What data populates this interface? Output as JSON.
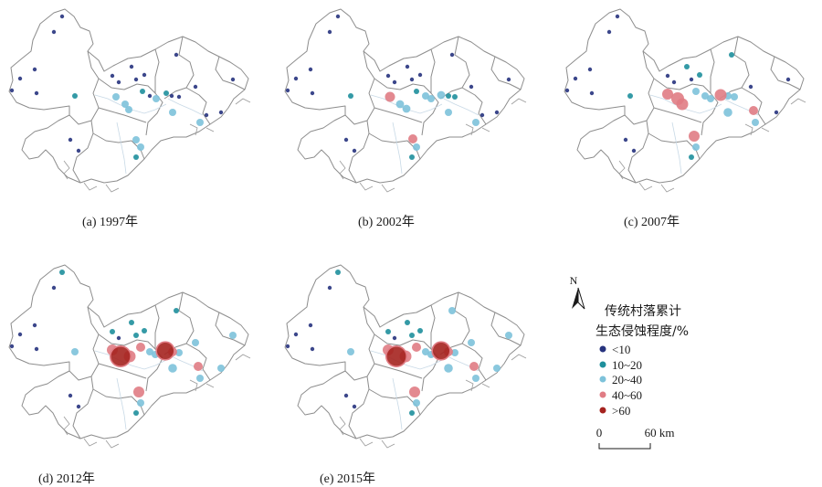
{
  "colors": {
    "lt10": "#27337e",
    "10to20": "#1e8f9c",
    "20to40": "#7dc2da",
    "40to60": "#e07c84",
    "gt60": "#a5231f",
    "boundary": "#8d8d8d"
  },
  "legend": {
    "title_line1": "传统村落累计",
    "title_line2": "生态侵蚀程度/%",
    "classes": [
      {
        "label": "<10",
        "color_key": "lt10"
      },
      {
        "label": "10~20",
        "color_key": "10to20"
      },
      {
        "label": "20~40",
        "color_key": "20to40"
      },
      {
        "label": "40~60",
        "color_key": "40to60"
      },
      {
        "label": ">60",
        "color_key": "gt60"
      }
    ]
  },
  "north_arrow": {
    "label": "N",
    "icon": "north-arrow-icon"
  },
  "scale_bar": {
    "label_start": "0",
    "label_end": "60 km"
  },
  "panels": [
    {
      "id": "a",
      "caption": "(a) 1997年",
      "villages": [
        {
          "mx": 64,
          "my": 14,
          "c": "lt10"
        },
        {
          "mx": 55,
          "my": 31,
          "c": "lt10"
        },
        {
          "mx": 34,
          "my": 72,
          "c": "lt10"
        },
        {
          "mx": 18,
          "my": 82,
          "c": "lt10"
        },
        {
          "mx": 9,
          "my": 95,
          "c": "lt10"
        },
        {
          "mx": 78,
          "my": 101,
          "c": "10to20"
        },
        {
          "mx": 123,
          "my": 102,
          "c": "20to40"
        },
        {
          "mx": 133,
          "my": 110,
          "c": "20to40"
        },
        {
          "mx": 137,
          "my": 116,
          "c": "20to40"
        },
        {
          "mx": 126,
          "my": 86,
          "c": "lt10"
        },
        {
          "mx": 119,
          "my": 79,
          "c": "lt10"
        },
        {
          "mx": 140,
          "my": 69,
          "c": "lt10"
        },
        {
          "mx": 154,
          "my": 78,
          "c": "lt10"
        },
        {
          "mx": 145,
          "my": 83,
          "c": "lt10"
        },
        {
          "mx": 152,
          "my": 96,
          "c": "10to20"
        },
        {
          "mx": 160,
          "my": 101,
          "c": "lt10"
        },
        {
          "mx": 167,
          "my": 104,
          "c": "20to40"
        },
        {
          "mx": 178,
          "my": 98,
          "c": "10to20"
        },
        {
          "mx": 184,
          "my": 101,
          "c": "lt10"
        },
        {
          "mx": 192,
          "my": 102,
          "c": "lt10"
        },
        {
          "mx": 189,
          "my": 56,
          "c": "lt10"
        },
        {
          "mx": 210,
          "my": 91,
          "c": "lt10"
        },
        {
          "mx": 185,
          "my": 119,
          "c": "20to40"
        },
        {
          "mx": 222,
          "my": 122,
          "c": "lt10"
        },
        {
          "mx": 215,
          "my": 130,
          "c": "20to40"
        },
        {
          "mx": 238,
          "my": 119,
          "c": "lt10"
        },
        {
          "mx": 251,
          "my": 83,
          "c": "lt10"
        },
        {
          "mx": 145,
          "my": 149,
          "c": "20to40"
        },
        {
          "mx": 150,
          "my": 157,
          "c": "20to40"
        },
        {
          "mx": 145,
          "my": 168,
          "c": "10to20"
        },
        {
          "mx": 73,
          "my": 149,
          "c": "lt10"
        },
        {
          "mx": 82,
          "my": 161,
          "c": "lt10"
        },
        {
          "mx": 36,
          "my": 98,
          "c": "lt10"
        }
      ]
    },
    {
      "id": "b",
      "caption": "(b) 2002年",
      "villages": [
        {
          "mx": 64,
          "my": 14,
          "c": "lt10"
        },
        {
          "mx": 55,
          "my": 31,
          "c": "lt10"
        },
        {
          "mx": 34,
          "my": 72,
          "c": "lt10"
        },
        {
          "mx": 18,
          "my": 82,
          "c": "lt10"
        },
        {
          "mx": 9,
          "my": 95,
          "c": "lt10"
        },
        {
          "mx": 78,
          "my": 101,
          "c": "10to20"
        },
        {
          "mx": 121,
          "my": 102,
          "c": "40to60",
          "s": 1.1
        },
        {
          "mx": 132,
          "my": 110,
          "c": "20to40",
          "s": 1.1
        },
        {
          "mx": 139,
          "my": 115,
          "c": "20to40",
          "s": 1.1
        },
        {
          "mx": 126,
          "my": 86,
          "c": "lt10"
        },
        {
          "mx": 119,
          "my": 79,
          "c": "lt10"
        },
        {
          "mx": 140,
          "my": 69,
          "c": "lt10"
        },
        {
          "mx": 154,
          "my": 78,
          "c": "lt10"
        },
        {
          "mx": 145,
          "my": 83,
          "c": "lt10"
        },
        {
          "mx": 150,
          "my": 96,
          "c": "10to20"
        },
        {
          "mx": 160,
          "my": 101,
          "c": "20to40"
        },
        {
          "mx": 166,
          "my": 104,
          "c": "20to40"
        },
        {
          "mx": 177,
          "my": 100,
          "c": "20to40",
          "s": 1.1
        },
        {
          "mx": 185,
          "my": 101,
          "c": "10to20"
        },
        {
          "mx": 192,
          "my": 102,
          "c": "10to20"
        },
        {
          "mx": 189,
          "my": 56,
          "c": "lt10"
        },
        {
          "mx": 210,
          "my": 91,
          "c": "lt10"
        },
        {
          "mx": 185,
          "my": 119,
          "c": "20to40"
        },
        {
          "mx": 222,
          "my": 122,
          "c": "lt10"
        },
        {
          "mx": 215,
          "my": 130,
          "c": "20to40"
        },
        {
          "mx": 238,
          "my": 119,
          "c": "lt10"
        },
        {
          "mx": 251,
          "my": 83,
          "c": "lt10"
        },
        {
          "mx": 146,
          "my": 148,
          "c": "40to60"
        },
        {
          "mx": 150,
          "my": 157,
          "c": "20to40"
        },
        {
          "mx": 145,
          "my": 168,
          "c": "10to20"
        },
        {
          "mx": 73,
          "my": 149,
          "c": "lt10"
        },
        {
          "mx": 82,
          "my": 161,
          "c": "lt10"
        },
        {
          "mx": 36,
          "my": 98,
          "c": "lt10"
        }
      ]
    },
    {
      "id": "c",
      "caption": "(c) 2007年",
      "villages": [
        {
          "mx": 64,
          "my": 14,
          "c": "lt10"
        },
        {
          "mx": 55,
          "my": 31,
          "c": "lt10"
        },
        {
          "mx": 34,
          "my": 72,
          "c": "lt10"
        },
        {
          "mx": 18,
          "my": 82,
          "c": "lt10"
        },
        {
          "mx": 9,
          "my": 95,
          "c": "lt10"
        },
        {
          "mx": 78,
          "my": 101,
          "c": "10to20"
        },
        {
          "mx": 119,
          "my": 99,
          "c": "40to60",
          "s": 1.2
        },
        {
          "mx": 130,
          "my": 104,
          "c": "40to60",
          "s": 1.4
        },
        {
          "mx": 135,
          "my": 110,
          "c": "40to60",
          "s": 1.3
        },
        {
          "mx": 126,
          "my": 86,
          "c": "lt10"
        },
        {
          "mx": 119,
          "my": 79,
          "c": "lt10"
        },
        {
          "mx": 140,
          "my": 69,
          "c": "10to20"
        },
        {
          "mx": 154,
          "my": 78,
          "c": "10to20"
        },
        {
          "mx": 145,
          "my": 83,
          "c": "lt10"
        },
        {
          "mx": 150,
          "my": 96,
          "c": "20to40"
        },
        {
          "mx": 160,
          "my": 101,
          "c": "20to40"
        },
        {
          "mx": 166,
          "my": 104,
          "c": "20to40"
        },
        {
          "mx": 177,
          "my": 100,
          "c": "40to60",
          "s": 1.3
        },
        {
          "mx": 185,
          "my": 101,
          "c": "20to40"
        },
        {
          "mx": 192,
          "my": 102,
          "c": "20to40"
        },
        {
          "mx": 189,
          "my": 56,
          "c": "10to20"
        },
        {
          "mx": 210,
          "my": 91,
          "c": "lt10"
        },
        {
          "mx": 185,
          "my": 119,
          "c": "20to40",
          "s": 1.2
        },
        {
          "mx": 213,
          "my": 117,
          "c": "40to60"
        },
        {
          "mx": 215,
          "my": 130,
          "c": "20to40"
        },
        {
          "mx": 238,
          "my": 119,
          "c": "lt10"
        },
        {
          "mx": 251,
          "my": 83,
          "c": "lt10"
        },
        {
          "mx": 148,
          "my": 145,
          "c": "40to60",
          "s": 1.2
        },
        {
          "mx": 150,
          "my": 157,
          "c": "20to40"
        },
        {
          "mx": 145,
          "my": 168,
          "c": "10to20"
        },
        {
          "mx": 73,
          "my": 149,
          "c": "lt10"
        },
        {
          "mx": 82,
          "my": 161,
          "c": "lt10"
        },
        {
          "mx": 36,
          "my": 98,
          "c": "lt10"
        }
      ]
    },
    {
      "id": "d",
      "caption": "(d) 2012年",
      "villages": [
        {
          "mx": 64,
          "my": 14,
          "c": "10to20"
        },
        {
          "mx": 55,
          "my": 31,
          "c": "lt10"
        },
        {
          "mx": 34,
          "my": 72,
          "c": "lt10"
        },
        {
          "mx": 18,
          "my": 82,
          "c": "lt10"
        },
        {
          "mx": 9,
          "my": 95,
          "c": "lt10"
        },
        {
          "mx": 78,
          "my": 101,
          "c": "20to40"
        },
        {
          "mx": 119,
          "my": 99,
          "c": "40to60",
          "s": 1.2
        },
        {
          "mx": 128,
          "my": 106,
          "c": "gt60",
          "s": 1.6
        },
        {
          "mx": 138,
          "my": 106,
          "c": "40to60",
          "s": 1.3
        },
        {
          "mx": 126,
          "my": 86,
          "c": "lt10"
        },
        {
          "mx": 119,
          "my": 79,
          "c": "10to20"
        },
        {
          "mx": 140,
          "my": 69,
          "c": "10to20"
        },
        {
          "mx": 154,
          "my": 78,
          "c": "10to20"
        },
        {
          "mx": 145,
          "my": 83,
          "c": "10to20"
        },
        {
          "mx": 150,
          "my": 96,
          "c": "40to60"
        },
        {
          "mx": 160,
          "my": 101,
          "c": "20to40"
        },
        {
          "mx": 166,
          "my": 104,
          "c": "20to40"
        },
        {
          "mx": 177,
          "my": 100,
          "c": "gt60",
          "s": 1.4
        },
        {
          "mx": 185,
          "my": 101,
          "c": "40to60"
        },
        {
          "mx": 192,
          "my": 102,
          "c": "20to40"
        },
        {
          "mx": 189,
          "my": 56,
          "c": "10to20"
        },
        {
          "mx": 210,
          "my": 91,
          "c": "20to40"
        },
        {
          "mx": 185,
          "my": 119,
          "c": "20to40",
          "s": 1.2
        },
        {
          "mx": 213,
          "my": 117,
          "c": "40to60"
        },
        {
          "mx": 215,
          "my": 130,
          "c": "20to40"
        },
        {
          "mx": 238,
          "my": 119,
          "c": "20to40"
        },
        {
          "mx": 251,
          "my": 83,
          "c": "20to40"
        },
        {
          "mx": 148,
          "my": 145,
          "c": "40to60",
          "s": 1.2
        },
        {
          "mx": 150,
          "my": 157,
          "c": "20to40"
        },
        {
          "mx": 145,
          "my": 168,
          "c": "10to20"
        },
        {
          "mx": 73,
          "my": 149,
          "c": "lt10"
        },
        {
          "mx": 82,
          "my": 161,
          "c": "lt10"
        },
        {
          "mx": 36,
          "my": 98,
          "c": "lt10"
        }
      ]
    },
    {
      "id": "e",
      "caption": "(e) 2015年",
      "villages": [
        {
          "mx": 64,
          "my": 14,
          "c": "10to20"
        },
        {
          "mx": 55,
          "my": 31,
          "c": "lt10"
        },
        {
          "mx": 34,
          "my": 72,
          "c": "lt10"
        },
        {
          "mx": 18,
          "my": 82,
          "c": "lt10"
        },
        {
          "mx": 9,
          "my": 95,
          "c": "lt10"
        },
        {
          "mx": 78,
          "my": 101,
          "c": "20to40"
        },
        {
          "mx": 119,
          "my": 99,
          "c": "40to60",
          "s": 1.2
        },
        {
          "mx": 128,
          "my": 106,
          "c": "gt60",
          "s": 1.6
        },
        {
          "mx": 138,
          "my": 106,
          "c": "40to60",
          "s": 1.3
        },
        {
          "mx": 126,
          "my": 86,
          "c": "lt10"
        },
        {
          "mx": 119,
          "my": 79,
          "c": "10to20"
        },
        {
          "mx": 140,
          "my": 69,
          "c": "10to20"
        },
        {
          "mx": 154,
          "my": 78,
          "c": "10to20"
        },
        {
          "mx": 145,
          "my": 83,
          "c": "10to20"
        },
        {
          "mx": 150,
          "my": 96,
          "c": "40to60"
        },
        {
          "mx": 160,
          "my": 101,
          "c": "20to40"
        },
        {
          "mx": 166,
          "my": 104,
          "c": "20to40"
        },
        {
          "mx": 177,
          "my": 100,
          "c": "gt60",
          "s": 1.4
        },
        {
          "mx": 185,
          "my": 101,
          "c": "40to60"
        },
        {
          "mx": 192,
          "my": 102,
          "c": "20to40"
        },
        {
          "mx": 189,
          "my": 56,
          "c": "20to40"
        },
        {
          "mx": 210,
          "my": 91,
          "c": "20to40"
        },
        {
          "mx": 185,
          "my": 119,
          "c": "20to40",
          "s": 1.2
        },
        {
          "mx": 213,
          "my": 117,
          "c": "40to60"
        },
        {
          "mx": 215,
          "my": 130,
          "c": "20to40"
        },
        {
          "mx": 238,
          "my": 119,
          "c": "20to40"
        },
        {
          "mx": 251,
          "my": 83,
          "c": "20to40"
        },
        {
          "mx": 148,
          "my": 145,
          "c": "40to60",
          "s": 1.2
        },
        {
          "mx": 150,
          "my": 157,
          "c": "20to40"
        },
        {
          "mx": 145,
          "my": 168,
          "c": "10to20"
        },
        {
          "mx": 73,
          "my": 149,
          "c": "lt10"
        },
        {
          "mx": 82,
          "my": 161,
          "c": "lt10"
        },
        {
          "mx": 36,
          "my": 98,
          "c": "lt10"
        }
      ]
    }
  ]
}
